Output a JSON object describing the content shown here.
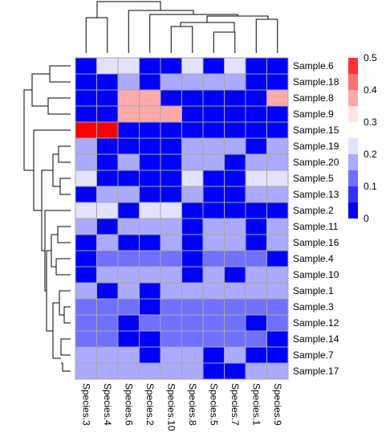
{
  "chart_data": {
    "type": "heatmap",
    "title": "",
    "columns": [
      "Species.3",
      "Species.4",
      "Species.6",
      "Species.2",
      "Species.10",
      "Species.8",
      "Species.5",
      "Species.7",
      "Species.1",
      "Species.9"
    ],
    "rows": [
      "Sample.6",
      "Sample.18",
      "Sample.8",
      "Sample.9",
      "Sample.15",
      "Sample.19",
      "Sample.20",
      "Sample.5",
      "Sample.13",
      "Sample.2",
      "Sample.11",
      "Sample.16",
      "Sample.4",
      "Sample.10",
      "Sample.1",
      "Sample.3",
      "Sample.12",
      "Sample.14",
      "Sample.7",
      "Sample.17"
    ],
    "values": [
      [
        0.0,
        0.2,
        0.2,
        0.0,
        0.0,
        0.2,
        0.0,
        0.2,
        0.0,
        0.0
      ],
      [
        0.0,
        0.0,
        0.15,
        0.0,
        0.15,
        0.15,
        0.15,
        0.15,
        0.0,
        0.0
      ],
      [
        0.0,
        0.0,
        0.35,
        0.35,
        0.0,
        0.0,
        0.0,
        0.0,
        0.0,
        0.35
      ],
      [
        0.0,
        0.0,
        0.35,
        0.35,
        0.35,
        0.0,
        0.0,
        0.0,
        0.0,
        0.0
      ],
      [
        0.5,
        0.5,
        0.0,
        0.0,
        0.0,
        0.0,
        0.0,
        0.0,
        0.0,
        0.0
      ],
      [
        0.15,
        0.0,
        0.0,
        0.0,
        0.0,
        0.15,
        0.15,
        0.15,
        0.0,
        0.15
      ],
      [
        0.15,
        0.0,
        0.15,
        0.0,
        0.0,
        0.15,
        0.15,
        0.0,
        0.15,
        0.15
      ],
      [
        0.2,
        0.0,
        0.0,
        0.0,
        0.0,
        0.2,
        0.0,
        0.0,
        0.2,
        0.2
      ],
      [
        0.0,
        0.15,
        0.15,
        0.0,
        0.0,
        0.15,
        0.0,
        0.0,
        0.15,
        0.15
      ],
      [
        0.2,
        0.2,
        0.0,
        0.2,
        0.2,
        0.0,
        0.0,
        0.0,
        0.0,
        0.0
      ],
      [
        0.15,
        0.0,
        0.15,
        0.15,
        0.15,
        0.0,
        0.15,
        0.15,
        0.0,
        0.15
      ],
      [
        0.0,
        0.15,
        0.0,
        0.0,
        0.15,
        0.0,
        0.15,
        0.15,
        0.0,
        0.15
      ],
      [
        0.0,
        0.1,
        0.1,
        0.1,
        0.1,
        0.0,
        0.1,
        0.1,
        0.1,
        0.0
      ],
      [
        0.0,
        0.15,
        0.15,
        0.15,
        0.15,
        0.0,
        0.15,
        0.0,
        0.15,
        0.15
      ],
      [
        0.15,
        0.0,
        0.15,
        0.0,
        0.15,
        0.15,
        0.15,
        0.15,
        0.15,
        0.15
      ],
      [
        0.1,
        0.1,
        0.1,
        0.0,
        0.1,
        0.1,
        0.1,
        0.1,
        0.1,
        0.1
      ],
      [
        0.1,
        0.1,
        0.0,
        0.1,
        0.1,
        0.1,
        0.1,
        0.1,
        0.0,
        0.1
      ],
      [
        0.1,
        0.1,
        0.0,
        0.0,
        0.1,
        0.1,
        0.1,
        0.1,
        0.1,
        0.0
      ],
      [
        0.15,
        0.15,
        0.15,
        0.0,
        0.15,
        0.15,
        0.0,
        0.15,
        0.0,
        0.0
      ],
      [
        0.15,
        0.15,
        0.15,
        0.15,
        0.15,
        0.15,
        0.0,
        0.0,
        0.15,
        0.15
      ]
    ],
    "color_scale": {
      "range": [
        0,
        0.5
      ],
      "ticks": [
        "0",
        "0.1",
        "0.2",
        "0.3",
        "0.4",
        "0.5"
      ],
      "bins": [
        {
          "from": 0.0,
          "to": 0.05,
          "color": "#0000FF"
        },
        {
          "from": 0.05,
          "to": 0.1,
          "color": "#3333FF"
        },
        {
          "from": 0.1,
          "to": 0.15,
          "color": "#7171FF"
        },
        {
          "from": 0.15,
          "to": 0.2,
          "color": "#AAAAFF"
        },
        {
          "from": 0.2,
          "to": 0.25,
          "color": "#E2E2FF"
        },
        {
          "from": 0.25,
          "to": 0.3,
          "color": "#FFFFFA"
        },
        {
          "from": 0.3,
          "to": 0.35,
          "color": "#FFE2E2"
        },
        {
          "from": 0.35,
          "to": 0.4,
          "color": "#FFAAAA"
        },
        {
          "from": 0.4,
          "to": 0.45,
          "color": "#FF7171"
        },
        {
          "from": 0.45,
          "to": 0.5,
          "color": "#FF3333"
        },
        {
          "from": 0.5,
          "to": 0.55,
          "color": "#FF0000"
        }
      ]
    },
    "cell_border_color": "#A6A6A6",
    "dendrograms": [
      "rows",
      "columns"
    ],
    "legend_placement": "right"
  }
}
